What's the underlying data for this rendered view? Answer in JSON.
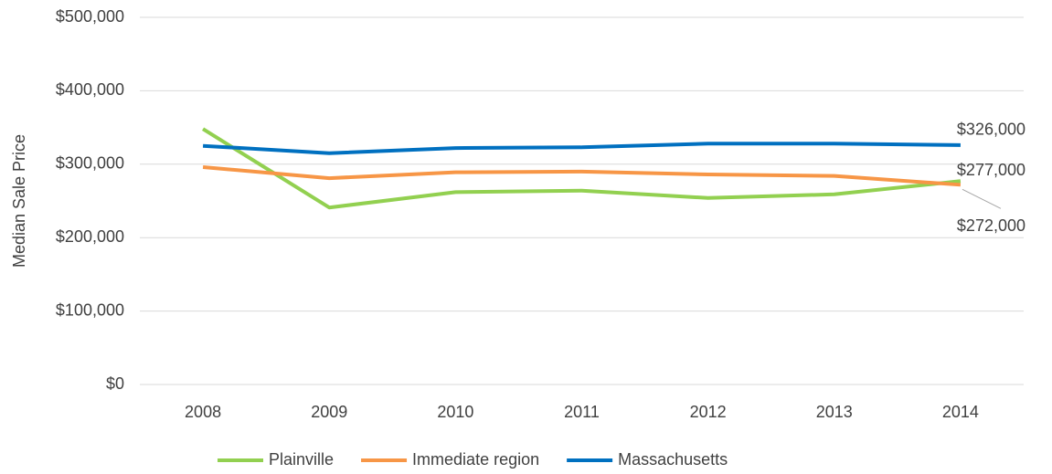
{
  "chart_data": {
    "type": "line",
    "y_label": "Median Sale Price",
    "categories": [
      "2008",
      "2009",
      "2010",
      "2011",
      "2012",
      "2013",
      "2014"
    ],
    "series": [
      {
        "name": "Plainville",
        "color": "#92d050",
        "values": [
          348000,
          241000,
          262000,
          264000,
          254000,
          259000,
          277000
        ],
        "value_labels": [
          null,
          null,
          null,
          null,
          null,
          null,
          "$277,000"
        ]
      },
      {
        "name": "Immediate region",
        "color": "#f79646",
        "values": [
          296000,
          281000,
          289000,
          290000,
          286000,
          284000,
          272000
        ],
        "value_labels": [
          null,
          null,
          null,
          null,
          null,
          null,
          "$272,000"
        ]
      },
      {
        "name": "Massachusetts",
        "color": "#0070c0",
        "values": [
          325000,
          315000,
          322000,
          323000,
          328000,
          328000,
          326000
        ],
        "value_labels": [
          null,
          null,
          null,
          null,
          null,
          null,
          "$326,000"
        ]
      }
    ],
    "ylim": [
      0,
      500000
    ],
    "yticks": [
      {
        "value": 0,
        "label": "$0"
      },
      {
        "value": 100000,
        "label": "$100,000"
      },
      {
        "value": 200000,
        "label": "$200,000"
      },
      {
        "value": 300000,
        "label": "$300,000"
      },
      {
        "value": 400000,
        "label": "$400,000"
      },
      {
        "value": 500000,
        "label": "$500,000"
      }
    ],
    "grid": true,
    "legend": "bottom"
  }
}
